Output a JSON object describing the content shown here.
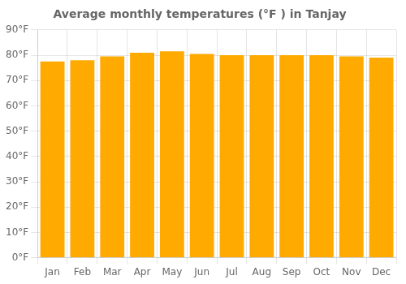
{
  "chart_data": {
    "type": "bar",
    "title": "Average monthly temperatures (°F ) in Tanjay",
    "categories": [
      "Jan",
      "Feb",
      "Mar",
      "Apr",
      "May",
      "Jun",
      "Jul",
      "Aug",
      "Sep",
      "Oct",
      "Nov",
      "Dec"
    ],
    "values": [
      77.5,
      78.0,
      79.5,
      81.0,
      81.5,
      80.5,
      80.0,
      80.0,
      80.0,
      80.0,
      79.5,
      79.0
    ],
    "color": "#FFAA00",
    "ylim": [
      0,
      90
    ],
    "yticks": [
      {
        "value": 0,
        "label": "0°F"
      },
      {
        "value": 10,
        "label": "10°F"
      },
      {
        "value": 20,
        "label": "20°F"
      },
      {
        "value": 30,
        "label": "30°F"
      },
      {
        "value": 40,
        "label": "40°F"
      },
      {
        "value": 50,
        "label": "50°F"
      },
      {
        "value": 60,
        "label": "60°F"
      },
      {
        "value": 70,
        "label": "70°F"
      },
      {
        "value": 80,
        "label": "80°F"
      },
      {
        "value": 90,
        "label": "90°F"
      }
    ],
    "grid": true
  }
}
